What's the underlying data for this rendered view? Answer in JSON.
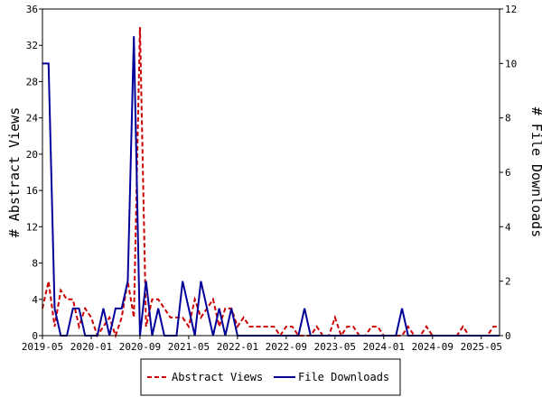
{
  "chart_data": {
    "type": "line",
    "x_tick_labels": [
      "2019-05",
      "2020-01",
      "2020-09",
      "2021-05",
      "2022-01",
      "2022-09",
      "2023-05",
      "2024-01",
      "2024-09",
      "2025-05"
    ],
    "left_axis": {
      "label": "# Abstract Views",
      "ylim": [
        0,
        36
      ],
      "ticks": [
        0,
        4,
        8,
        12,
        16,
        20,
        24,
        28,
        32,
        36
      ]
    },
    "right_axis": {
      "label": "# File Downloads",
      "ylim": [
        0,
        12
      ],
      "ticks": [
        0,
        2,
        4,
        6,
        8,
        10,
        12
      ]
    },
    "grid": false,
    "legend_position": "bottom",
    "series": [
      {
        "name": "Abstract Views",
        "axis": "left",
        "color": "#cc0000",
        "style": "dashed",
        "values": [
          3,
          6,
          1,
          5,
          4,
          4,
          1,
          3,
          2,
          0,
          1,
          2,
          0,
          2,
          6,
          2,
          34,
          1,
          4,
          4,
          3,
          2,
          2,
          2,
          1,
          4,
          2,
          3,
          4,
          1,
          3,
          3,
          1,
          2,
          1,
          1,
          1,
          1,
          1,
          0,
          1,
          1,
          0,
          0,
          0,
          1,
          0,
          0,
          2,
          0,
          1,
          1,
          0,
          0,
          1,
          1,
          0,
          0,
          0,
          0,
          1,
          0,
          0,
          1,
          0,
          0,
          0,
          0,
          0,
          1,
          0,
          0,
          0,
          0,
          1,
          1
        ]
      },
      {
        "name": "File Downloads",
        "axis": "right",
        "color": "#000099",
        "style": "solid",
        "values": [
          10,
          10,
          1,
          0,
          0,
          1,
          1,
          0,
          0,
          0,
          1,
          0,
          1,
          1,
          2,
          11,
          0,
          2,
          0,
          1,
          0,
          0,
          0,
          2,
          1,
          0,
          2,
          1,
          0,
          1,
          0,
          1,
          0,
          0,
          0,
          0,
          0,
          0,
          0,
          0,
          0,
          0,
          0,
          1,
          0,
          0,
          0,
          0,
          0,
          0,
          0,
          0,
          0,
          0,
          0,
          0,
          0,
          0,
          0,
          1,
          0,
          0,
          0,
          0,
          0,
          0,
          0,
          0,
          0,
          0,
          0,
          0,
          0,
          0,
          0,
          0
        ]
      }
    ]
  }
}
